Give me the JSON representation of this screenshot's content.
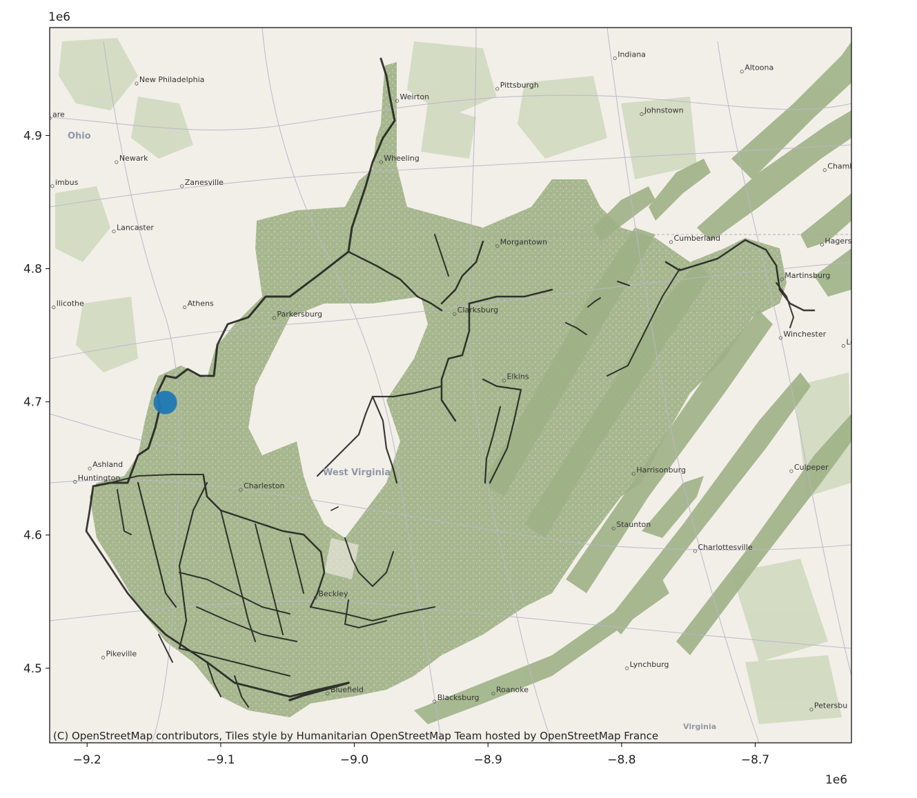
{
  "map": {
    "x_axis": {
      "ticks": [
        -9.2,
        -9.1,
        -9.0,
        -8.9,
        -8.8,
        -8.7
      ],
      "tick_labels": [
        "−9.2",
        "−9.1",
        "−9.0",
        "−8.9",
        "−8.8",
        "−8.7"
      ],
      "offset_label": "1e6",
      "range": [
        -9.228,
        -8.628
      ]
    },
    "y_axis": {
      "ticks": [
        4.5,
        4.6,
        4.7,
        4.8,
        4.9
      ],
      "tick_labels": [
        "4.5",
        "4.6",
        "4.7",
        "4.8",
        "4.9"
      ],
      "offset_label": "1e6",
      "range": [
        4.444,
        4.981
      ]
    },
    "attribution": "(C) OpenStreetMap contributors, Tiles style by Humanitarian OpenStreetMap Team hosted by OpenStreetMap France",
    "marker": {
      "x": -9.1415,
      "y": 4.6995,
      "color": "#1f77b4"
    },
    "region_labels": [
      "Ohio",
      "West Virginia",
      "Virginia"
    ],
    "places": [
      {
        "name": "Indiana",
        "x": -8.805,
        "y": 4.958
      },
      {
        "name": "Altoona",
        "x": -8.71,
        "y": 4.948
      },
      {
        "name": "New Philadelphia",
        "x": -9.163,
        "y": 4.939
      },
      {
        "name": "Pittsburgh",
        "x": -8.893,
        "y": 4.935
      },
      {
        "name": "Weirton",
        "x": -8.968,
        "y": 4.926
      },
      {
        "name": "Johnstown",
        "x": -8.785,
        "y": 4.916
      },
      {
        "name": "Newark",
        "x": -9.178,
        "y": 4.88
      },
      {
        "name": "Wheeling",
        "x": -8.98,
        "y": 4.88
      },
      {
        "name": "Zanesville",
        "x": -9.129,
        "y": 4.862
      },
      {
        "name": "Lancaster",
        "x": -9.18,
        "y": 4.828
      },
      {
        "name": "Morgantown",
        "x": -8.893,
        "y": 4.817
      },
      {
        "name": "Cumberland",
        "x": -8.763,
        "y": 4.82
      },
      {
        "name": "Martinsburg",
        "x": -8.68,
        "y": 4.792
      },
      {
        "name": "Athens",
        "x": -9.127,
        "y": 4.771
      },
      {
        "name": "Parkersburg",
        "x": -9.06,
        "y": 4.763
      },
      {
        "name": "Clarksburg",
        "x": -8.925,
        "y": 4.766
      },
      {
        "name": "Winchester",
        "x": -8.681,
        "y": 4.748
      },
      {
        "name": "Elkins",
        "x": -8.888,
        "y": 4.716
      },
      {
        "name": "Ashland",
        "x": -9.198,
        "y": 4.65
      },
      {
        "name": "Huntington",
        "x": -9.209,
        "y": 4.64
      },
      {
        "name": "Harrisonburg",
        "x": -8.791,
        "y": 4.646
      },
      {
        "name": "Culpeper",
        "x": -8.673,
        "y": 4.648
      },
      {
        "name": "Charleston",
        "x": -9.085,
        "y": 4.634
      },
      {
        "name": "Staunton",
        "x": -8.806,
        "y": 4.605
      },
      {
        "name": "Charlottesville",
        "x": -8.745,
        "y": 4.588
      },
      {
        "name": "Beckley",
        "x": -9.029,
        "y": 4.553
      },
      {
        "name": "Pikeville",
        "x": -9.188,
        "y": 4.508
      },
      {
        "name": "Lynchburg",
        "x": -8.796,
        "y": 4.5
      },
      {
        "name": "Bluefield",
        "x": -9.02,
        "y": 4.481
      },
      {
        "name": "Roanoke",
        "x": -8.896,
        "y": 4.481
      },
      {
        "name": "Blacksburg",
        "x": -8.94,
        "y": 4.475
      },
      {
        "name": "Petersbu",
        "x": -8.658,
        "y": 4.469
      },
      {
        "name": "Hagerstn",
        "x": -8.65,
        "y": 4.818
      },
      {
        "name": "Chamb",
        "x": -8.648,
        "y": 4.874
      },
      {
        "name": "Le",
        "x": -8.634,
        "y": 4.742
      },
      {
        "name": "llicothe",
        "x": -9.225,
        "y": 4.771
      },
      {
        "name": "imbus",
        "x": -9.226,
        "y": 4.862
      },
      {
        "name": "are",
        "x": -9.228,
        "y": 4.913
      }
    ],
    "colors": {
      "background": "#f2efe9",
      "forest": "#a9b98f",
      "rivers": "#1a1a1a",
      "roads": "#b9b7c9",
      "frame": "#000000"
    }
  }
}
